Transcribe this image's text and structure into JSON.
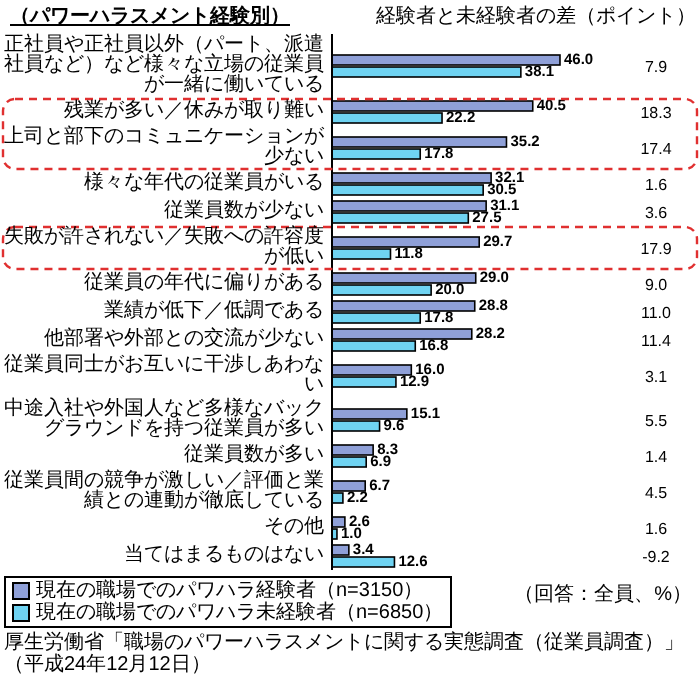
{
  "chart_data": {
    "type": "bar",
    "orientation": "horizontal",
    "title": "（パワーハラスメント経験別）",
    "categories": [
      "正社員や正社員以外（パート、派遣社員など）など様々な立場の従業員が一緒に働いている",
      "残業が多い／休みが取り難い",
      "上司と部下のコミュニケーションが少ない",
      "様々な年代の従業員がいる",
      "従業員数が少ない",
      "失敗が許されない／失敗への許容度が低い",
      "従業員の年代に偏りがある",
      "業績が低下／低調である",
      "他部署や外部との交流が少ない",
      "従業員同士がお互いに干渉しあわない",
      "中途入社や外国人など多様なバックグラウンドを持つ従業員が多い",
      "従業員数が多い",
      "従業員間の競争が激しい／評価と業績との連動が徹底している",
      "その他",
      "当てはまるものはない"
    ],
    "series": [
      {
        "name": "現在の職場でのパワハラ経験者（n=3150）",
        "color": "#8fa0d8",
        "values": [
          46.0,
          40.5,
          35.2,
          32.1,
          31.1,
          29.7,
          29.0,
          28.8,
          28.2,
          16.0,
          15.1,
          8.3,
          6.7,
          2.6,
          3.4
        ],
        "value_labels": [
          "46.0",
          "40.5",
          "35.2",
          "32.1",
          "31.1",
          "29.7",
          "29.0",
          "28.8",
          "28.2",
          "16.0",
          "15.1",
          "8.3",
          "6.7",
          "2.6",
          "3.4"
        ]
      },
      {
        "name": "現在の職場でのパワハラ未経験者（n=6850）",
        "color": "#6fd3f2",
        "values": [
          38.1,
          22.2,
          17.8,
          30.5,
          27.5,
          11.8,
          20.0,
          17.8,
          16.8,
          12.9,
          9.6,
          6.9,
          2.2,
          1.0,
          12.6
        ],
        "value_labels": [
          "38.1",
          "22.2",
          "17.8",
          "30.5",
          "27.5",
          "11.8",
          "20.0",
          "17.8",
          "16.8",
          "12.9",
          "9.6",
          "6.9",
          "2.2",
          "1.0",
          "12.6"
        ]
      }
    ],
    "legend": "bottom left",
    "annotations": [
      "経験者と未経験者の差（ポイント）",
      "7.9",
      "18.3",
      "17.4",
      "1.6",
      "3.6",
      "17.9",
      "9.0",
      "11.0",
      "11.4",
      "3.1",
      "5.5",
      "1.4",
      "4.5",
      "1.6",
      "-9.2",
      "（回答：全員、%）",
      "厚生労働省「職場のパワーハラスメントに関する実態調査（従業員調査）」（平成24年12月12日）"
    ]
  }
}
